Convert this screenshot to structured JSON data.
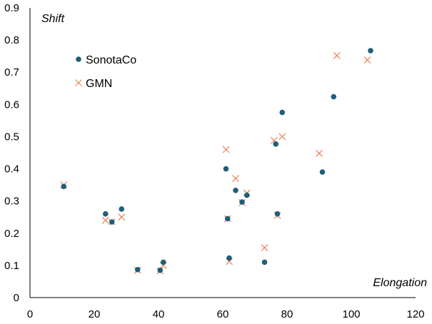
{
  "chart_data": {
    "type": "scatter",
    "title": "",
    "xlabel": "Elongation",
    "ylabel": "Shift",
    "xlim": [
      0,
      120
    ],
    "ylim": [
      0,
      0.9
    ],
    "xticks": [
      "0",
      "20",
      "40",
      "60",
      "80",
      "100",
      "120"
    ],
    "yticks": [
      "0",
      "0.1",
      "0.2",
      "0.3",
      "0.4",
      "0.5",
      "0.6",
      "0.7",
      "0.8",
      "0.9"
    ],
    "grid": false,
    "legend_position": "top-left",
    "series": [
      {
        "name": "SonotaCo",
        "marker": "circle",
        "color": "#1f5f7a",
        "points": [
          [
            10.5,
            0.345
          ],
          [
            23.5,
            0.26
          ],
          [
            25.5,
            0.235
          ],
          [
            28.5,
            0.275
          ],
          [
            33.5,
            0.087
          ],
          [
            40.5,
            0.085
          ],
          [
            41.5,
            0.11
          ],
          [
            61.0,
            0.4
          ],
          [
            61.5,
            0.245
          ],
          [
            62.0,
            0.123
          ],
          [
            64.0,
            0.333
          ],
          [
            66.0,
            0.297
          ],
          [
            67.5,
            0.318
          ],
          [
            73.0,
            0.11
          ],
          [
            76.5,
            0.477
          ],
          [
            77.0,
            0.26
          ],
          [
            78.5,
            0.575
          ],
          [
            91.0,
            0.39
          ],
          [
            94.5,
            0.624
          ],
          [
            106.0,
            0.767
          ]
        ]
      },
      {
        "name": "GMN",
        "marker": "x",
        "color": "#e8825a",
        "points": [
          [
            10.5,
            0.35
          ],
          [
            23.5,
            0.24
          ],
          [
            25.5,
            0.235
          ],
          [
            28.5,
            0.25
          ],
          [
            33.5,
            0.085
          ],
          [
            40.5,
            0.083
          ],
          [
            41.5,
            0.1
          ],
          [
            61.0,
            0.46
          ],
          [
            61.5,
            0.245
          ],
          [
            62.0,
            0.112
          ],
          [
            64.0,
            0.37
          ],
          [
            66.0,
            0.295
          ],
          [
            67.5,
            0.325
          ],
          [
            73.0,
            0.155
          ],
          [
            76.0,
            0.488
          ],
          [
            77.0,
            0.255
          ],
          [
            78.5,
            0.5
          ],
          [
            90.0,
            0.448
          ],
          [
            95.5,
            0.752
          ],
          [
            105.0,
            0.738
          ]
        ]
      }
    ]
  }
}
